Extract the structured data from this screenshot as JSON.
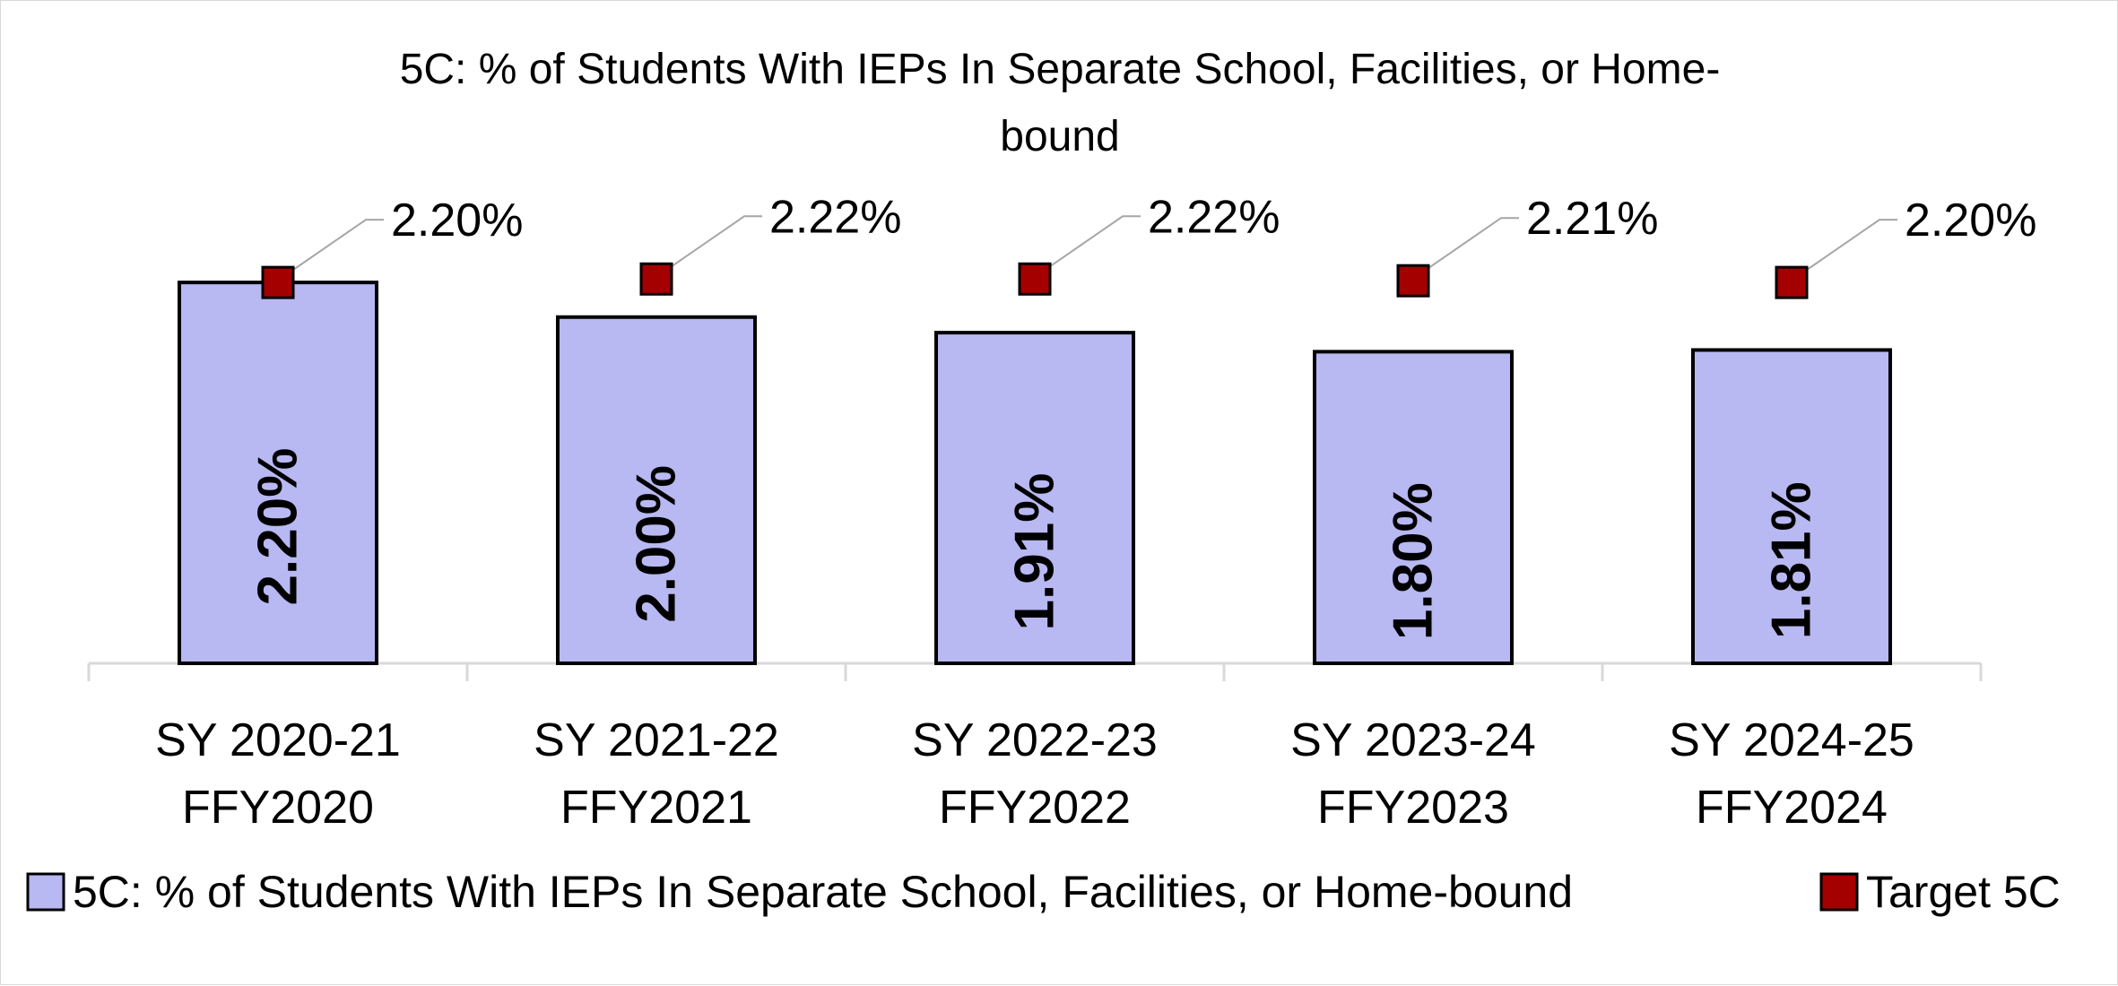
{
  "chart_data": {
    "type": "bar",
    "title": "5C: % of Students With IEPs In Separate School, Facilities, or Home-bound",
    "title_lines": [
      "5C: % of Students With IEPs In Separate School, Facilities, or Home-",
      "bound"
    ],
    "categories": [
      [
        "SY 2020-21",
        "FFY2020"
      ],
      [
        "SY 2021-22",
        "FFY2021"
      ],
      [
        "SY 2022-23",
        "FFY2022"
      ],
      [
        "SY 2023-24",
        "FFY2023"
      ],
      [
        "SY 2024-25",
        "FFY2024"
      ]
    ],
    "series": [
      {
        "name": "5C: % of Students With IEPs In Separate School, Facilities, or Home-bound",
        "kind": "bar",
        "values": [
          2.2,
          2.0,
          1.91,
          1.8,
          1.81
        ],
        "labels": [
          "2.20%",
          "2.00%",
          "1.91%",
          "1.80%",
          "1.81%"
        ],
        "color": "#b8b8f2"
      },
      {
        "name": "Target 5C",
        "kind": "marker",
        "values": [
          2.2,
          2.22,
          2.22,
          2.21,
          2.2
        ],
        "labels": [
          "2.20%",
          "2.22%",
          "2.22%",
          "2.21%",
          "2.20%"
        ],
        "color": "#a50000"
      }
    ],
    "ylim": [
      0,
      3.2
    ],
    "xlabel": "",
    "ylabel": "",
    "grid": false,
    "legend_position": "bottom"
  },
  "colors": {
    "bar_fill": "#b8b8f2",
    "bar_stroke": "#000000",
    "target_fill": "#a50000",
    "axis": "#d9d9d9",
    "leader": "#a6a6a6"
  }
}
